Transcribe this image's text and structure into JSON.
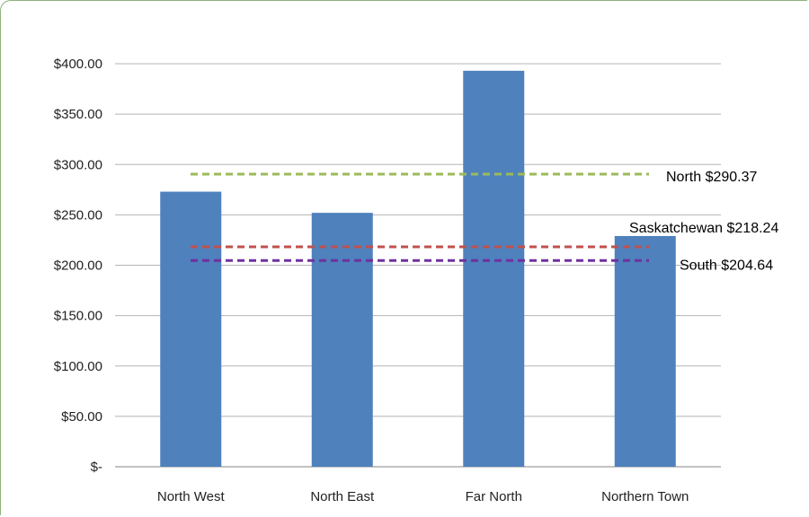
{
  "chart_data": {
    "type": "bar",
    "title": "",
    "xlabel": "",
    "ylabel": "",
    "categories": [
      "North West",
      "North East",
      "Far North",
      "Northern Town"
    ],
    "values": [
      273,
      252,
      393,
      229
    ],
    "ylim": [
      0,
      400
    ],
    "yticks": [
      0,
      50,
      100,
      150,
      200,
      250,
      300,
      350,
      400
    ],
    "ytick_labels": [
      "$-",
      "$50.00",
      "$100.00",
      "$150.00",
      "$200.00",
      "$250.00",
      "$300.00",
      "$350.00",
      "$400.00"
    ],
    "grid": true,
    "bar_color": "#4f81bd",
    "reference_lines": [
      {
        "label": "North $290.37",
        "value": 290.37,
        "color": "#9bbb59"
      },
      {
        "label": "Saskatchewan $218.24",
        "value": 218.24,
        "color": "#c0504d"
      },
      {
        "label": "South $204.64",
        "value": 204.64,
        "color": "#7030a0"
      }
    ]
  }
}
